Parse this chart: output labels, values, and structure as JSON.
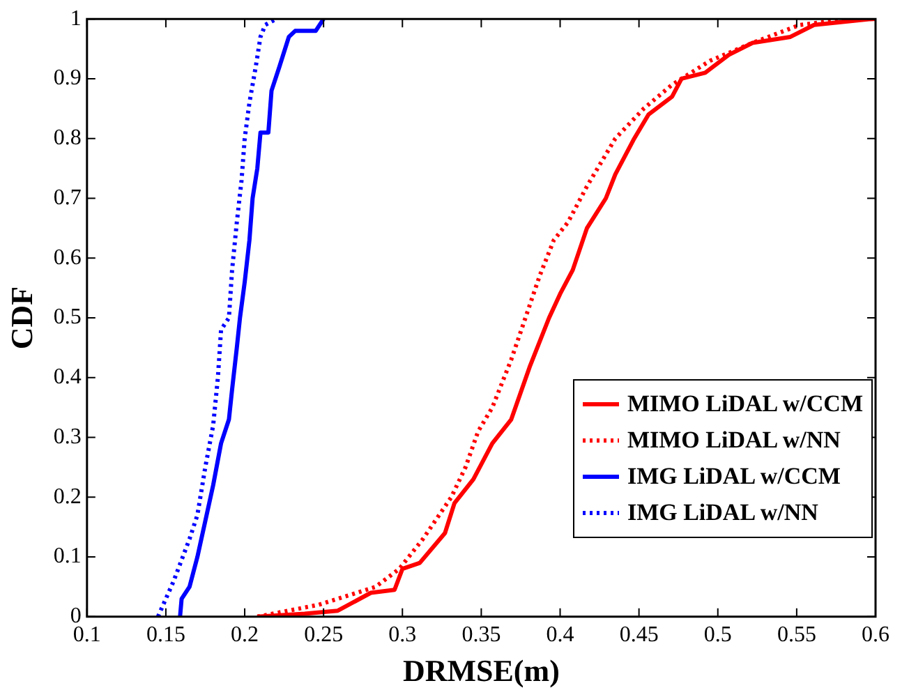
{
  "chart_data": {
    "type": "line",
    "xlabel": "DRMSE(m)",
    "ylabel": "CDF",
    "xlim": [
      0.1,
      0.6
    ],
    "xticks": [
      0.1,
      0.15,
      0.2,
      0.25,
      0.3,
      0.35,
      0.4,
      0.45,
      0.5,
      0.55,
      0.6
    ],
    "ylim": [
      0,
      1
    ],
    "yticks": [
      0,
      0.1,
      0.2,
      0.3,
      0.4,
      0.5,
      0.6,
      0.7,
      0.8,
      0.9,
      1
    ],
    "grid": false,
    "legend": "bottom right",
    "marker": "none",
    "series": [
      {
        "name": "MIMO LiDAL w/CCM",
        "color": "#ff0000",
        "line_style": "solid",
        "x": [
          0.208,
          0.238,
          0.259,
          0.28,
          0.295,
          0.3,
          0.311,
          0.327,
          0.333,
          0.345,
          0.357,
          0.369,
          0.381,
          0.393,
          0.4,
          0.408,
          0.417,
          0.429,
          0.435,
          0.447,
          0.456,
          0.471,
          0.477,
          0.492,
          0.507,
          0.522,
          0.546,
          0.561,
          0.597,
          0.6
        ],
        "values": [
          0,
          0.005,
          0.01,
          0.04,
          0.045,
          0.08,
          0.09,
          0.14,
          0.19,
          0.23,
          0.29,
          0.33,
          0.42,
          0.5,
          0.54,
          0.58,
          0.65,
          0.7,
          0.74,
          0.8,
          0.84,
          0.87,
          0.9,
          0.91,
          0.94,
          0.96,
          0.97,
          0.99,
          1,
          1
        ]
      },
      {
        "name": "MIMO LiDAL w/NN",
        "color": "#ff0000",
        "line_style": "dotted",
        "x": [
          0.208,
          0.247,
          0.283,
          0.298,
          0.313,
          0.331,
          0.34,
          0.348,
          0.357,
          0.369,
          0.378,
          0.387,
          0.396,
          0.405,
          0.417,
          0.435,
          0.453,
          0.471,
          0.495,
          0.522,
          0.552,
          0.582,
          0.6
        ],
        "values": [
          0,
          0.02,
          0.05,
          0.08,
          0.13,
          0.2,
          0.25,
          0.31,
          0.35,
          0.43,
          0.5,
          0.57,
          0.63,
          0.66,
          0.72,
          0.8,
          0.85,
          0.89,
          0.93,
          0.96,
          0.99,
          1,
          1
        ]
      },
      {
        "name": "IMG LiDAL w/CCM",
        "color": "#0000ff",
        "line_style": "solid",
        "x": [
          0.159,
          0.16,
          0.165,
          0.17,
          0.175,
          0.18,
          0.185,
          0.19,
          0.192,
          0.195,
          0.197,
          0.2,
          0.203,
          0.205,
          0.208,
          0.21,
          0.215,
          0.217,
          0.222,
          0.228,
          0.232,
          0.245,
          0.25
        ],
        "values": [
          0,
          0.03,
          0.05,
          0.1,
          0.16,
          0.22,
          0.29,
          0.33,
          0.38,
          0.45,
          0.5,
          0.56,
          0.63,
          0.7,
          0.75,
          0.81,
          0.81,
          0.88,
          0.92,
          0.97,
          0.98,
          0.98,
          1
        ]
      },
      {
        "name": "IMG LiDAL w/NN",
        "color": "#0000ff",
        "line_style": "dotted",
        "x": [
          0.145,
          0.15,
          0.155,
          0.165,
          0.17,
          0.175,
          0.18,
          0.183,
          0.185,
          0.19,
          0.192,
          0.195,
          0.198,
          0.2,
          0.203,
          0.207,
          0.21,
          0.213,
          0.22
        ],
        "values": [
          0,
          0.03,
          0.06,
          0.13,
          0.17,
          0.25,
          0.32,
          0.4,
          0.48,
          0.5,
          0.58,
          0.66,
          0.73,
          0.8,
          0.86,
          0.92,
          0.97,
          0.99,
          1
        ]
      }
    ]
  }
}
